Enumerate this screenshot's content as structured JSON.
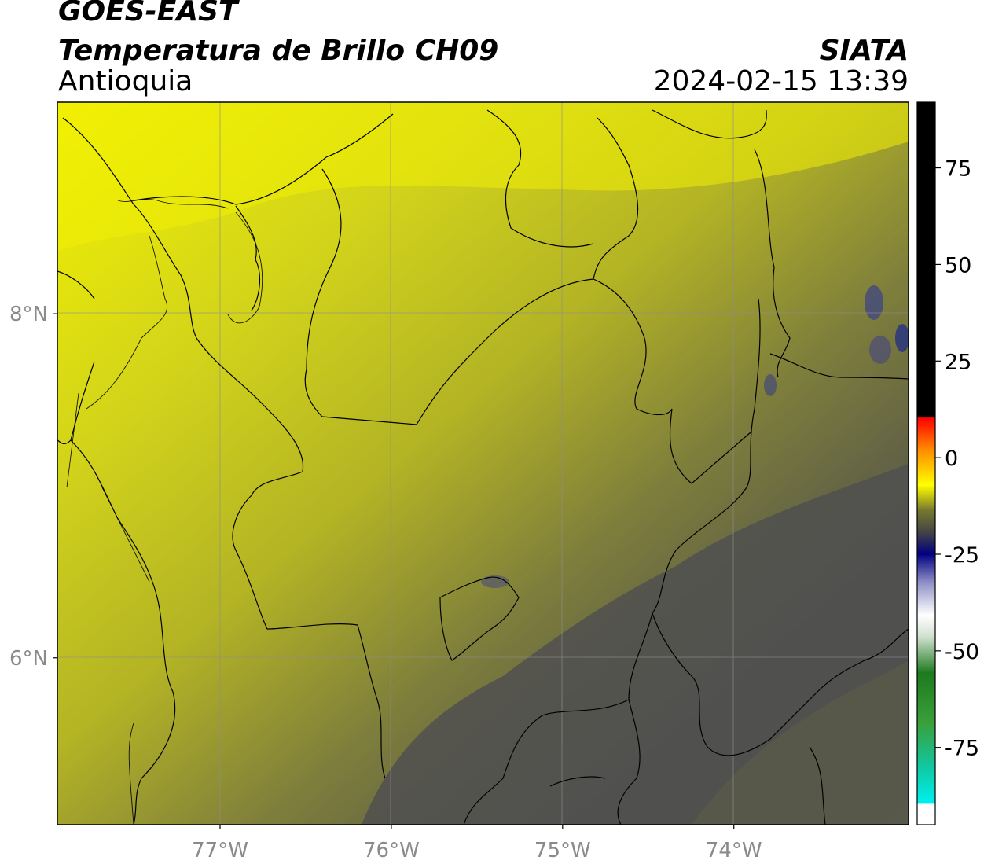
{
  "header": {
    "satellite": "GOES-EAST",
    "product": "Temperatura de Brillo CH09",
    "region": "Antioquia",
    "organization": "SIATA",
    "timestamp": "2024-02-15 13:39"
  },
  "map": {
    "lon_range": [
      -77.95,
      -72.98
    ],
    "lat_range": [
      5.03,
      9.23
    ],
    "lon_ticks": [
      {
        "value": -77,
        "label": "77°W"
      },
      {
        "value": -76,
        "label": "76°W"
      },
      {
        "value": -75,
        "label": "75°W"
      },
      {
        "value": -74,
        "label": "74°W"
      }
    ],
    "lat_ticks": [
      {
        "value": 8,
        "label": "8°N"
      },
      {
        "value": 6,
        "label": "6°N"
      }
    ]
  },
  "colorbar": {
    "range": [
      -95,
      92
    ],
    "ticks": [
      {
        "value": 75,
        "label": "75"
      },
      {
        "value": 50,
        "label": "50"
      },
      {
        "value": 25,
        "label": "25"
      },
      {
        "value": 0,
        "label": "0"
      },
      {
        "value": -25,
        "label": "-25"
      },
      {
        "value": -50,
        "label": "-50"
      },
      {
        "value": -75,
        "label": "-75"
      }
    ]
  }
}
